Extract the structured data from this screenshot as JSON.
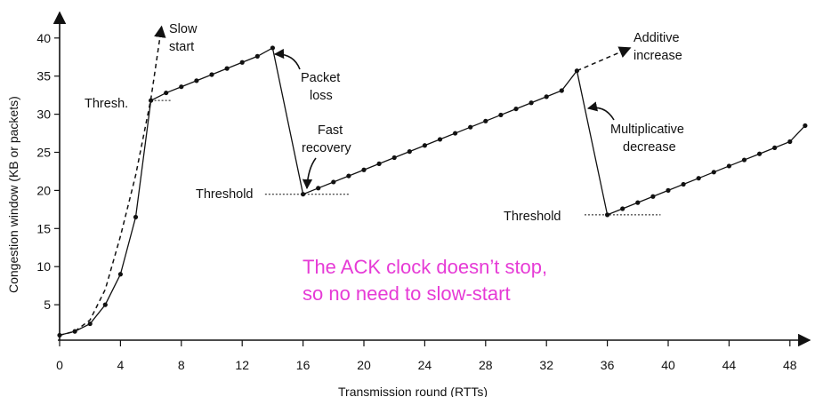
{
  "chart_data": {
    "type": "line",
    "xlabel": "Transmission round (RTTs)",
    "ylabel": "Congestion window  (KB or packets)",
    "xlim": [
      0,
      49
    ],
    "ylim": [
      0,
      44
    ],
    "x_ticks": [
      0,
      4,
      8,
      12,
      16,
      20,
      24,
      28,
      32,
      36,
      40,
      44,
      48
    ],
    "y_ticks": [
      5,
      10,
      15,
      20,
      25,
      30,
      35,
      40
    ],
    "grid": false,
    "series": [
      {
        "points": [
          [
            0,
            1
          ],
          [
            1,
            1.5
          ],
          [
            2,
            2.5
          ],
          [
            3,
            5
          ],
          [
            4,
            9
          ],
          [
            5,
            16.5
          ],
          [
            6,
            31.8
          ],
          [
            7,
            32.8
          ],
          [
            8,
            33.6
          ],
          [
            9,
            34.4
          ],
          [
            10,
            35.2
          ],
          [
            11,
            36
          ],
          [
            12,
            36.8
          ],
          [
            13,
            37.6
          ],
          [
            14,
            38.7
          ],
          [
            16,
            19.5
          ],
          [
            17,
            20.3
          ],
          [
            18,
            21.1
          ],
          [
            19,
            21.9
          ],
          [
            20,
            22.7
          ],
          [
            21,
            23.5
          ],
          [
            22,
            24.3
          ],
          [
            23,
            25.1
          ],
          [
            24,
            25.9
          ],
          [
            25,
            26.7
          ],
          [
            26,
            27.5
          ],
          [
            27,
            28.3
          ],
          [
            28,
            29.1
          ],
          [
            29,
            29.9
          ],
          [
            30,
            30.7
          ],
          [
            31,
            31.5
          ],
          [
            32,
            32.3
          ],
          [
            33,
            33.1
          ],
          [
            34,
            35.7
          ],
          [
            36,
            16.8
          ],
          [
            37,
            17.6
          ],
          [
            38,
            18.4
          ],
          [
            39,
            19.2
          ],
          [
            40,
            20
          ],
          [
            41,
            20.8
          ],
          [
            42,
            21.6
          ],
          [
            43,
            22.4
          ],
          [
            44,
            23.2
          ],
          [
            45,
            24
          ],
          [
            46,
            24.8
          ],
          [
            47,
            25.6
          ],
          [
            48,
            26.4
          ],
          [
            49,
            28.5
          ]
        ]
      }
    ],
    "slow_start_dashed": [
      [
        0,
        1
      ],
      [
        1,
        1.5
      ],
      [
        2,
        3
      ],
      [
        3,
        7
      ],
      [
        4,
        14
      ],
      [
        5,
        22
      ],
      [
        6,
        32
      ],
      [
        6.7,
        41.5
      ]
    ],
    "additive_dashed": [
      [
        34,
        35.7
      ],
      [
        37.5,
        38.7
      ]
    ],
    "threshold_lines": [
      {
        "y": 31.8,
        "from": 6,
        "to": 7.3
      },
      {
        "y": 19.5,
        "from": 13.5,
        "to": 19
      },
      {
        "y": 16.8,
        "from": 34.5,
        "to": 39.5
      }
    ],
    "annotations": {
      "slow_start": [
        "Slow",
        "start"
      ],
      "thresh": "Thresh.",
      "packet_loss": [
        "Packet",
        "loss"
      ],
      "fast_recovery": [
        "Fast",
        "recovery"
      ],
      "threshold_1": "Threshold",
      "threshold_2": "Threshold",
      "additive_increase": [
        "Additive",
        "increase"
      ],
      "multiplicative_decrease": [
        "Multiplicative",
        "decrease"
      ],
      "ack_note": [
        "The ACK clock doesn’t stop,",
        "so no need to slow-start"
      ]
    },
    "colors": {
      "axis": "#111111",
      "line": "#111111",
      "note": "#e63bd6"
    }
  }
}
